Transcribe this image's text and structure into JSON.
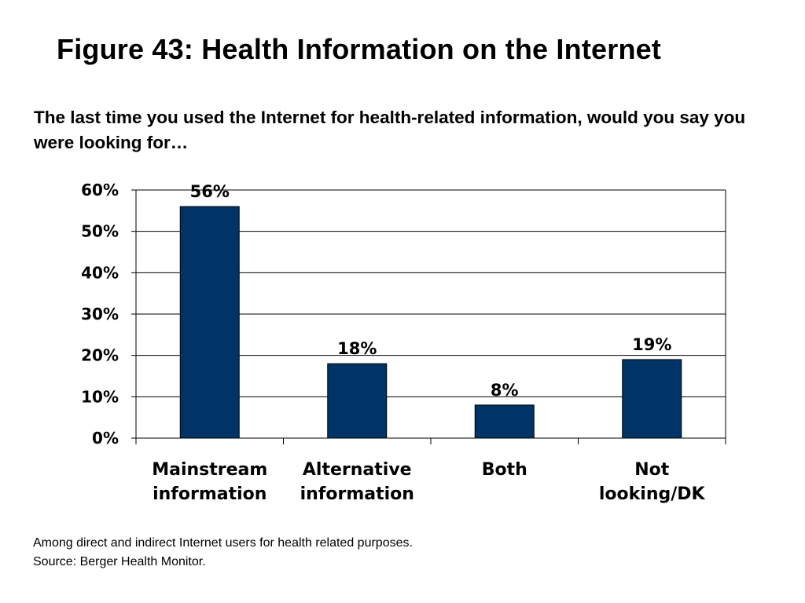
{
  "title": "Figure 43: Health Information on the Internet",
  "question": "The last time you used the Internet for health-related information, would you say you were looking for…",
  "footnotes": [
    "Among direct and indirect Internet users for health related purposes.",
    "Source: Berger Health Monitor."
  ],
  "chart_data": {
    "type": "bar",
    "title": "",
    "xlabel": "",
    "ylabel": "",
    "categories": [
      [
        "Mainstream",
        "information"
      ],
      [
        "Alternative",
        "information"
      ],
      [
        "Both"
      ],
      [
        "Not",
        "looking/DK"
      ]
    ],
    "values": [
      56,
      18,
      8,
      19
    ],
    "data_labels": [
      "56%",
      "18%",
      "8%",
      "19%"
    ],
    "ylim": [
      0,
      60
    ],
    "y_ticks": [
      0,
      10,
      20,
      30,
      40,
      50,
      60
    ],
    "y_tick_labels": [
      "0%",
      "10%",
      "20%",
      "30%",
      "40%",
      "50%",
      "60%"
    ],
    "grid": true,
    "legend": "none",
    "bar_color": "#003366"
  }
}
